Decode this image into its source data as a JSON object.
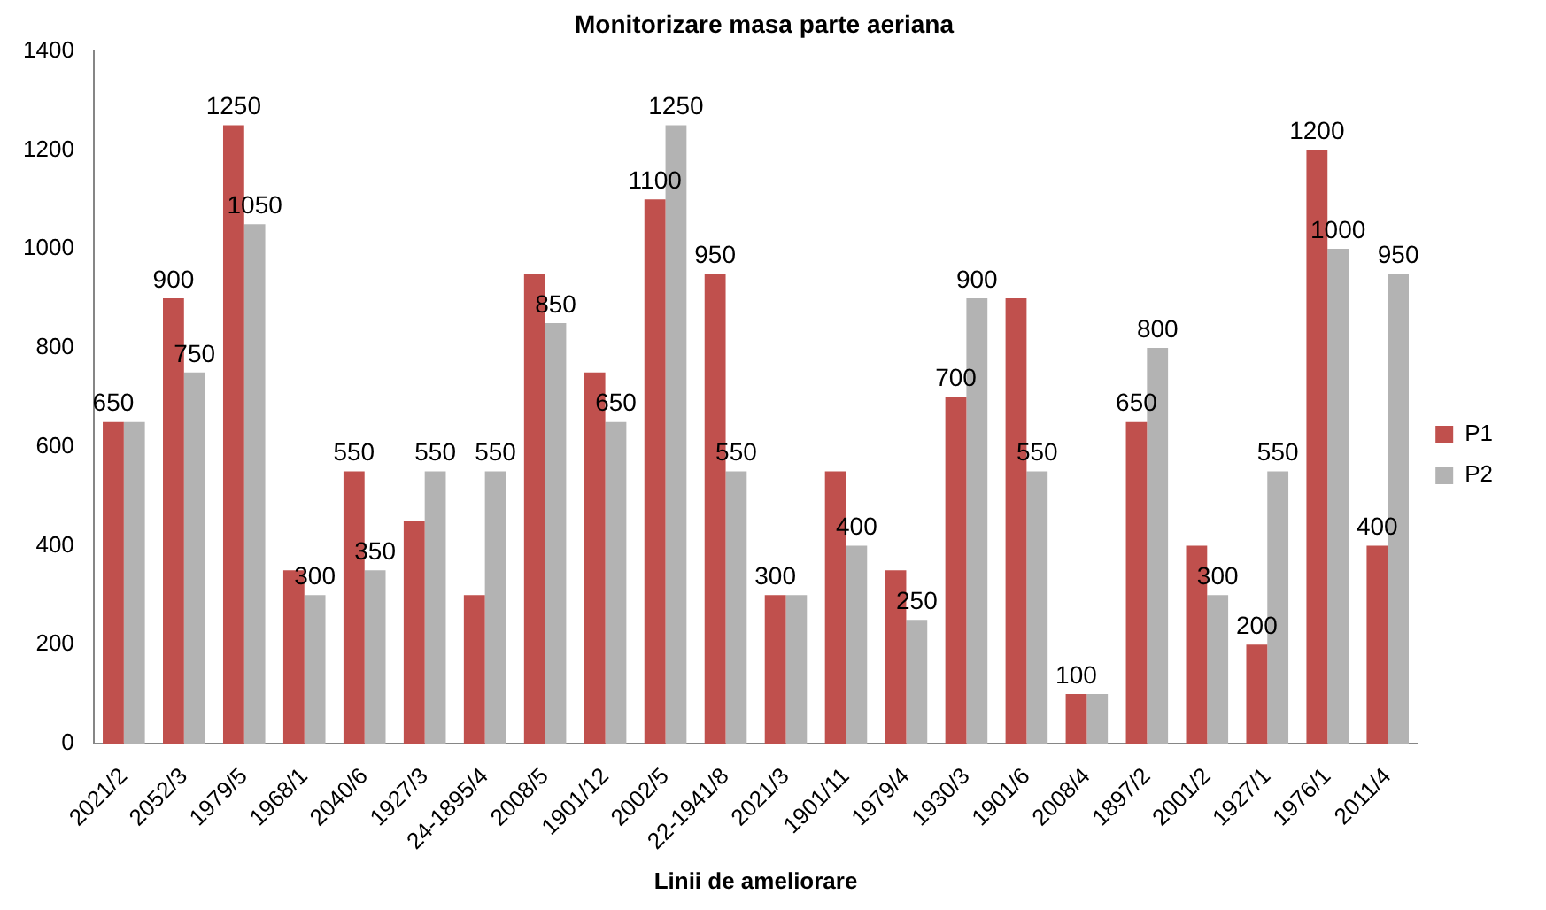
{
  "chart_data": {
    "type": "bar",
    "title": "Monitorizare masa parte aeriana",
    "xlabel": "Linii de ameliorare",
    "categories": [
      "2021/2",
      "2052/3",
      "1979/5",
      "1968/1",
      "2040/6",
      "1927/3",
      "24-1895/4",
      "2008/5",
      "1901/12",
      "2002/5",
      "22-1941/8",
      "2021/3",
      "1901/11",
      "1979/4",
      "1930/3",
      "1901/6",
      "2008/4",
      "1897/2",
      "2001/2",
      "1927/1",
      "1976/1",
      "2011/4"
    ],
    "series": [
      {
        "name": "P1",
        "color": "#c0504d",
        "values": [
          650,
          900,
          1250,
          350,
          550,
          450,
          300,
          950,
          750,
          1100,
          950,
          300,
          550,
          350,
          700,
          900,
          100,
          650,
          400,
          200,
          1200,
          400
        ],
        "value_labels": [
          "650",
          "900",
          "1250",
          null,
          "550",
          null,
          null,
          null,
          null,
          "1100",
          "950",
          "300",
          null,
          null,
          "700",
          null,
          "100",
          "650",
          null,
          "200",
          "1200",
          "400"
        ]
      },
      {
        "name": "P2",
        "color": "#b3b3b3",
        "values": [
          650,
          750,
          1050,
          300,
          350,
          550,
          550,
          850,
          650,
          1250,
          550,
          300,
          400,
          250,
          900,
          550,
          100,
          800,
          300,
          550,
          1000,
          950
        ],
        "value_labels": [
          null,
          "750",
          "1050",
          "300",
          "350",
          "550",
          "550",
          "850",
          "650",
          "1250",
          "550",
          null,
          "400",
          "250",
          "900",
          "550",
          null,
          "800",
          "300",
          "550",
          "1000",
          "950"
        ]
      }
    ],
    "ylim": [
      0,
      1400
    ],
    "yticks": [
      0,
      200,
      400,
      600,
      800,
      1000,
      1200,
      1400
    ],
    "grid": false,
    "legend": "right"
  }
}
